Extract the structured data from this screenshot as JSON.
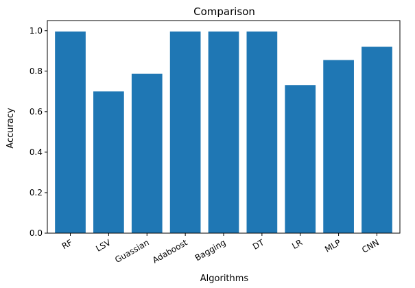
{
  "chart_data": {
    "type": "bar",
    "title": "Comparison",
    "xlabel": "Algorithms",
    "ylabel": "Accuracy",
    "categories": [
      "RF",
      "LSV",
      "Guassian",
      "Adaboost",
      "Bagging",
      "DT",
      "LR",
      "MLP",
      "CNN"
    ],
    "values": [
      0.996,
      0.7,
      0.787,
      0.996,
      0.996,
      0.996,
      0.731,
      0.855,
      0.921
    ],
    "ylim": [
      0,
      1.05
    ],
    "yticks": [
      0.0,
      0.2,
      0.4,
      0.6,
      0.8,
      1.0
    ],
    "ytick_labels": [
      "0.0",
      "0.2",
      "0.4",
      "0.6",
      "0.8",
      "1.0"
    ],
    "xtick_rotation_deg": 30,
    "grid": false,
    "legend": "none",
    "bar_color": "#1f77b4"
  }
}
